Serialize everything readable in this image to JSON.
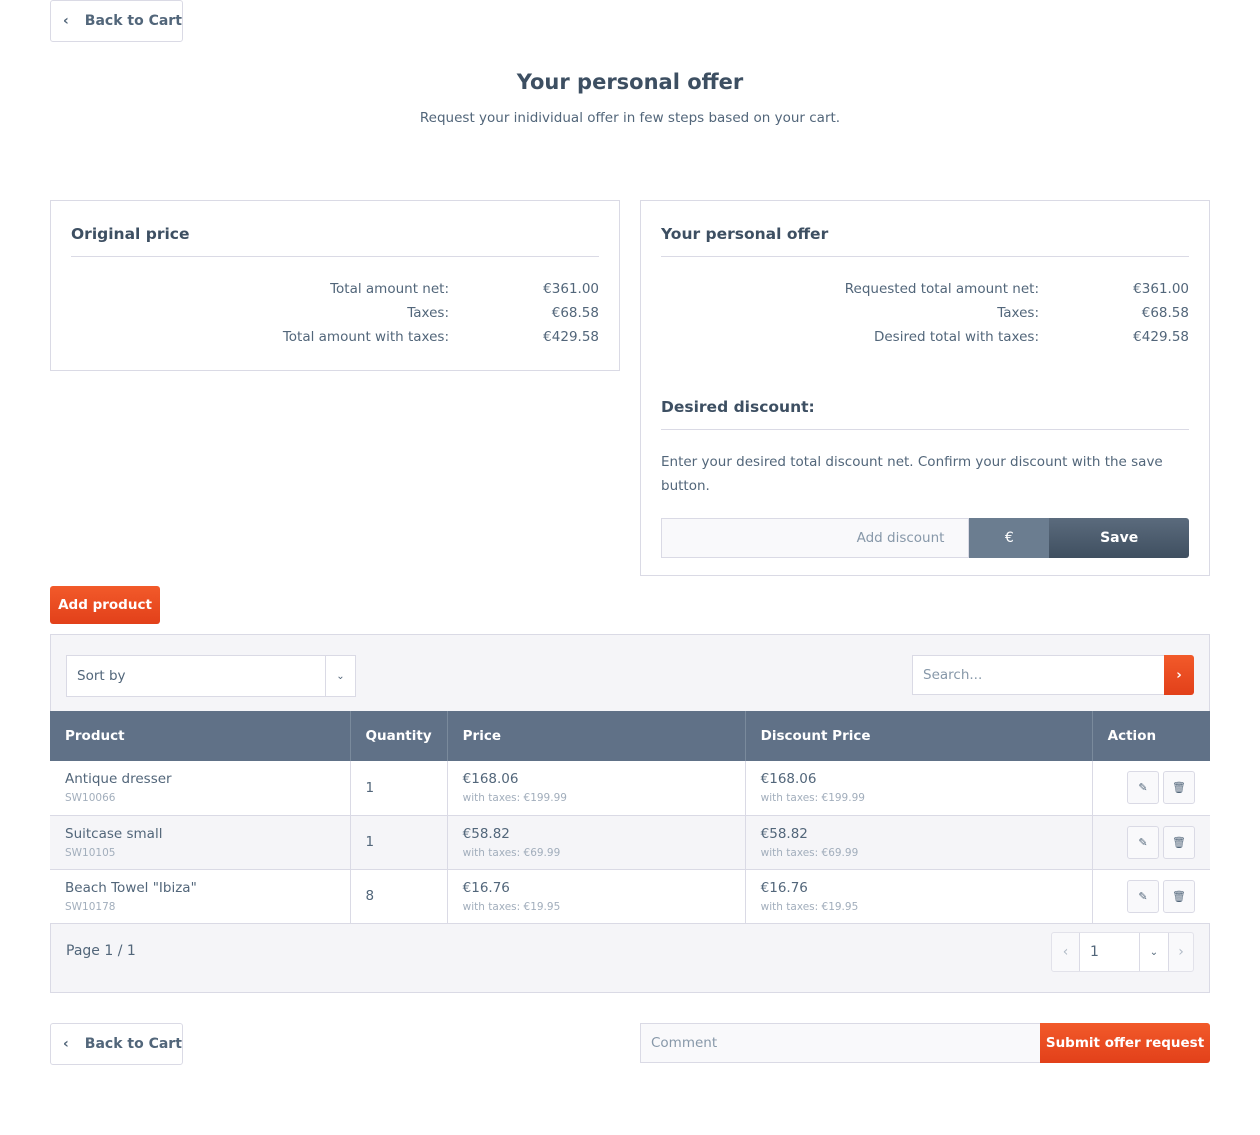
{
  "nav": {
    "back_label": "Back to Cart"
  },
  "header": {
    "title": "Your personal offer",
    "subtitle": "Request your inidividual offer in few steps based on your cart."
  },
  "original": {
    "title": "Original price",
    "rows": [
      {
        "label": "Total amount net:",
        "value": "€361.00"
      },
      {
        "label": "Taxes:",
        "value": "€68.58"
      },
      {
        "label": "Total amount with taxes:",
        "value": "€429.58"
      }
    ]
  },
  "offer": {
    "title": "Your personal offer",
    "rows": [
      {
        "label": "Requested total amount net:",
        "value": "€361.00"
      },
      {
        "label": "Taxes:",
        "value": "€68.58"
      },
      {
        "label": "Desired total with taxes:",
        "value": "€429.58"
      }
    ],
    "discount_title": "Desired discount:",
    "discount_text": "Enter your desired total discount net. Confirm your discount with the save button.",
    "discount_placeholder": "Add discount",
    "currency": "€",
    "save_label": "Save"
  },
  "toolbar": {
    "add_product": "Add product",
    "sort_placeholder": "Sort by",
    "search_placeholder": "Search..."
  },
  "table": {
    "columns": [
      "Product",
      "Quantity",
      "Price",
      "Discount Price",
      "Action"
    ],
    "rows": [
      {
        "name": "Antique dresser",
        "sku": "SW10066",
        "qty": "1",
        "price": "€168.06",
        "price_tax": "with taxes: €199.99",
        "discount": "€168.06",
        "discount_tax": "with taxes: €199.99"
      },
      {
        "name": "Suitcase small",
        "sku": "SW10105",
        "qty": "1",
        "price": "€58.82",
        "price_tax": "with taxes: €69.99",
        "discount": "€58.82",
        "discount_tax": "with taxes: €69.99"
      },
      {
        "name": "Beach Towel \"Ibiza\"",
        "sku": "SW10178",
        "qty": "8",
        "price": "€16.76",
        "price_tax": "with taxes: €19.95",
        "discount": "€16.76",
        "discount_tax": "with taxes: €19.95"
      }
    ]
  },
  "pagination": {
    "label": "Page 1 / 1",
    "current": "1"
  },
  "footer": {
    "comment_placeholder": "Comment",
    "submit_label": "Submit offer request"
  },
  "colors": {
    "accent": "#e9471f",
    "table_header": "#607187",
    "text": "#52667a"
  }
}
